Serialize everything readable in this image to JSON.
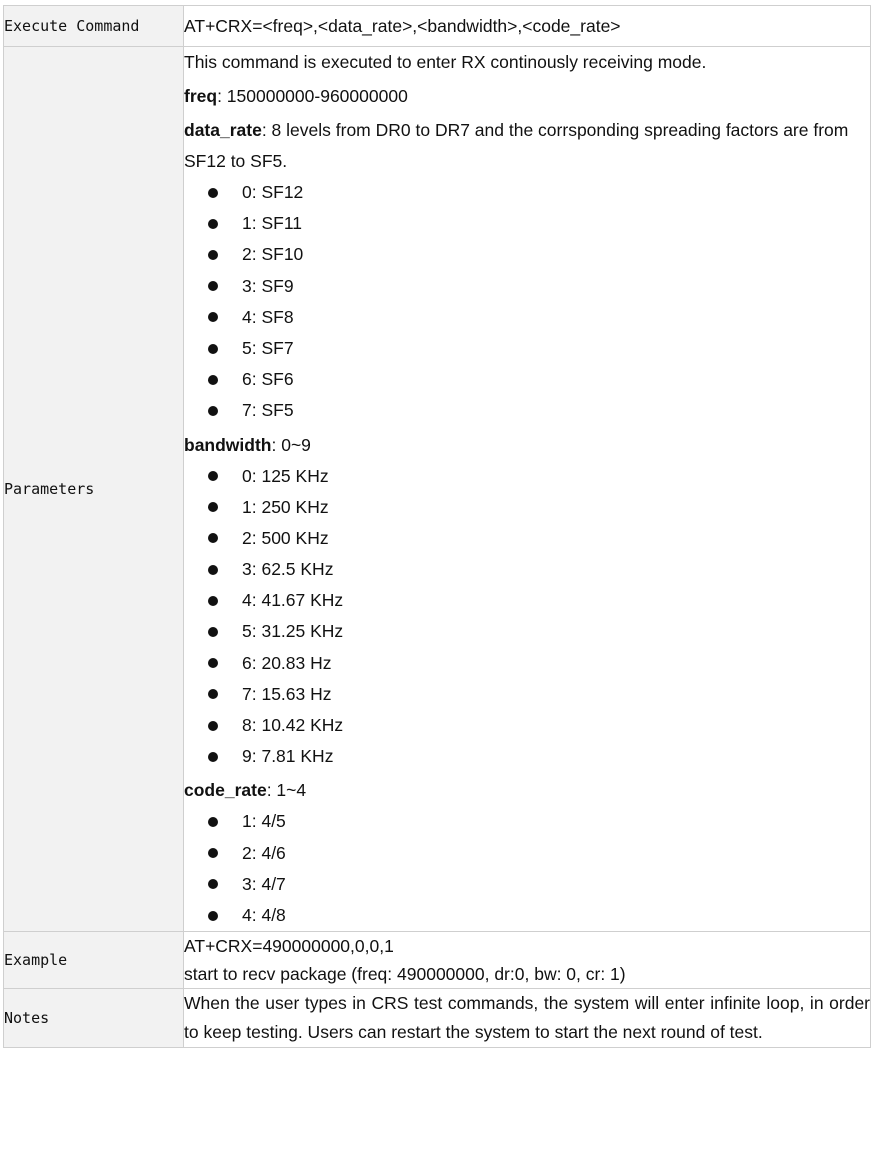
{
  "rows": {
    "execute": {
      "label": "Execute Command",
      "value": "AT+CRX=<freq>,<data_rate>,<bandwidth>,<code_rate>"
    },
    "parameters": {
      "label": "Parameters",
      "intro": "This command is executed to enter RX continously receiving mode.",
      "freq": {
        "name": "freq",
        "text": ": 150000000-960000000"
      },
      "data_rate": {
        "name": "data_rate",
        "text": ": 8 levels from DR0 to DR7 and the corrsponding spreading factors are from SF12 to SF5.",
        "items": [
          "0: SF12",
          "1: SF11",
          "2: SF10",
          "3: SF9",
          "4: SF8",
          "5: SF7",
          "6: SF6",
          "7: SF5"
        ]
      },
      "bandwidth": {
        "name": "bandwidth",
        "text": ": 0~9",
        "items": [
          "0: 125 KHz",
          "1: 250 KHz",
          "2: 500 KHz",
          "3: 62.5 KHz",
          "4: 41.67 KHz",
          "5: 31.25 KHz",
          "6: 20.83 Hz",
          "7: 15.63 Hz",
          "8: 10.42 KHz",
          "9: 7.81 KHz"
        ]
      },
      "code_rate": {
        "name": "code_rate",
        "text": ": 1~4",
        "items": [
          "1: 4/5",
          "2: 4/6",
          "3: 4/7",
          "4: 4/8"
        ]
      }
    },
    "example": {
      "label": "Example",
      "line1": "AT+CRX=490000000,0,0,1",
      "line2": "start to recv package (freq: 490000000, dr:0, bw: 0, cr: 1)"
    },
    "notes": {
      "label": "Notes",
      "text": "When the user types in CRS test commands, the system will enter infinite loop, in order to keep testing. Users can restart the system to start the next round of test."
    }
  }
}
